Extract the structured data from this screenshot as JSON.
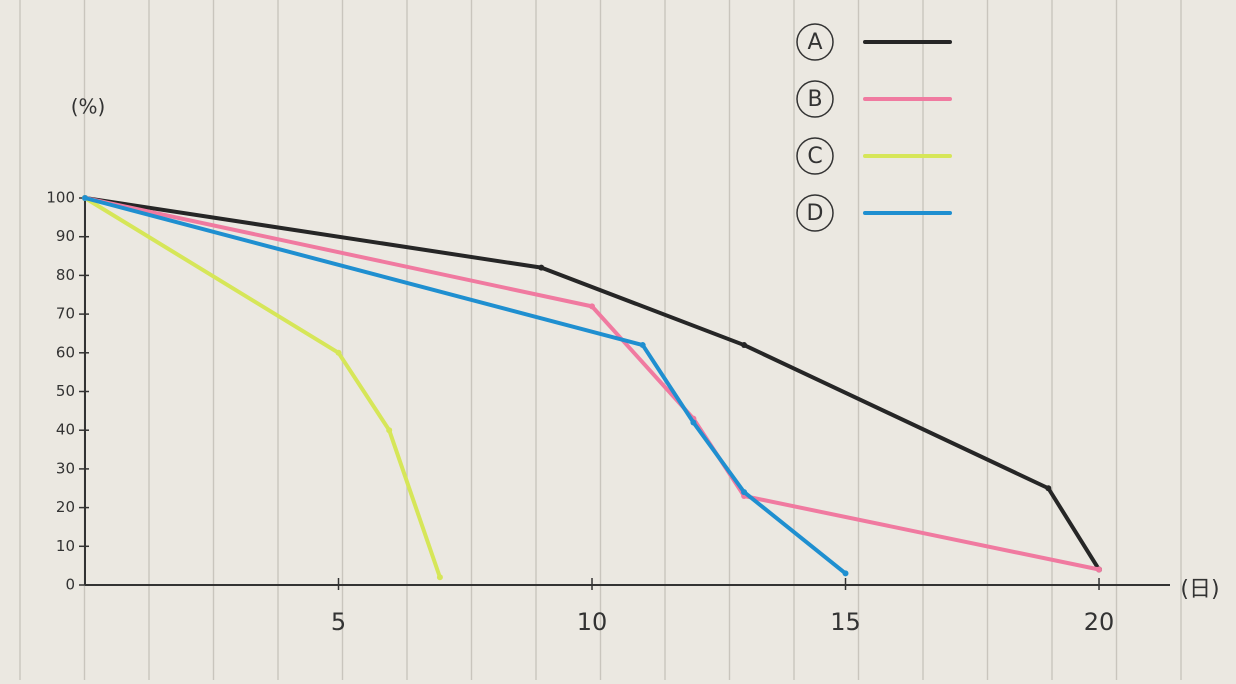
{
  "chart_data": {
    "type": "line",
    "x_label": "(日)",
    "y_label": "(%)",
    "xlim": [
      0,
      21.4
    ],
    "ylim": [
      0,
      100
    ],
    "xticks": [
      5,
      10,
      15,
      20
    ],
    "yticks": [
      0,
      10,
      20,
      30,
      40,
      50,
      60,
      70,
      80,
      90,
      100
    ],
    "series": [
      {
        "name": "A",
        "color": "#262626",
        "x": [
          0,
          9,
          13,
          19,
          20
        ],
        "values": [
          100,
          82,
          62,
          25,
          4
        ]
      },
      {
        "name": "B",
        "color": "#f07aa0",
        "x": [
          0,
          10,
          12,
          13,
          20
        ],
        "values": [
          100,
          72,
          43,
          23,
          4
        ]
      },
      {
        "name": "C",
        "color": "#d6e658",
        "x": [
          0,
          5,
          6,
          7
        ],
        "values": [
          100,
          60,
          40,
          2
        ]
      },
      {
        "name": "D",
        "color": "#1f8fd0",
        "x": [
          0,
          11,
          12,
          13,
          15
        ],
        "values": [
          100,
          62,
          42,
          24,
          3
        ]
      }
    ]
  }
}
